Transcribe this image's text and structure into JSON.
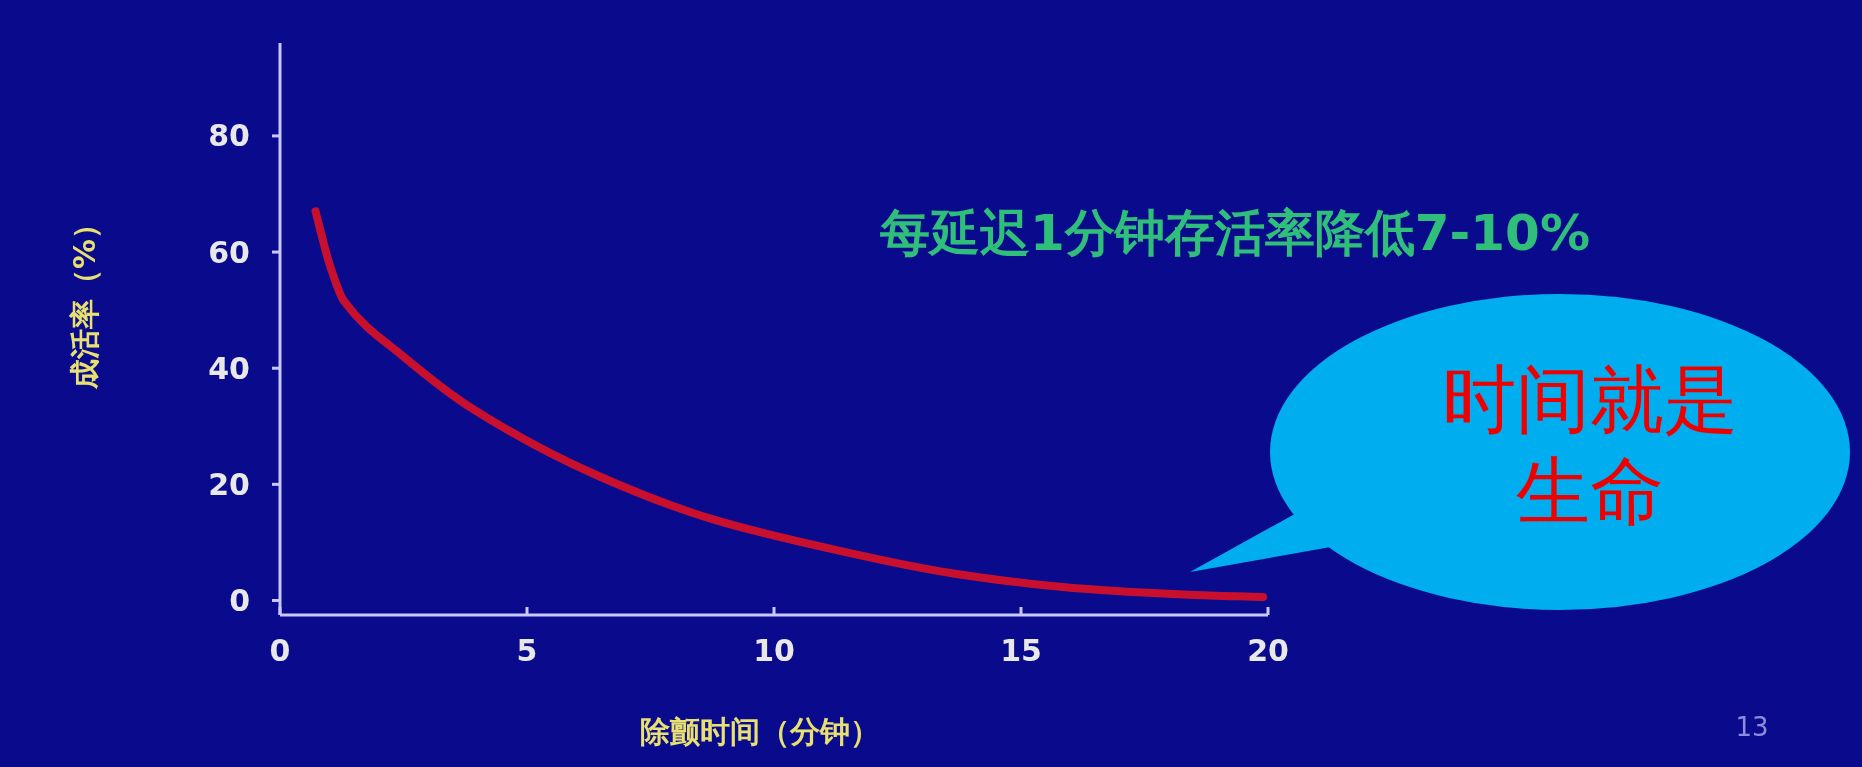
{
  "chart_data": {
    "type": "line",
    "xlabel": "除颤时间（分钟）",
    "ylabel": "成活率（%）",
    "xlim": [
      0,
      20
    ],
    "xticks": [
      0,
      5,
      10,
      15,
      20
    ],
    "ylim": [
      -2.5,
      96
    ],
    "yticks": [
      0,
      20,
      40,
      60,
      80
    ],
    "x": [
      0.72,
      1.0,
      1.3,
      2.5,
      3.9,
      6.3,
      8.75,
      11.2,
      13.6,
      16,
      18.4,
      19.9
    ],
    "series": [
      {
        "color": "#c8102e",
        "values": [
          67,
          58,
          51.5,
          42,
          33,
          22,
          14,
          8.8,
          4.7,
          2.2,
          1,
          0.6
        ]
      }
    ],
    "annotations": [
      "每延迟1分钟存活率降低7-10%",
      "时间就是生命",
      "13"
    ],
    "grid": false,
    "marker": "none",
    "line_style": "solid"
  }
}
